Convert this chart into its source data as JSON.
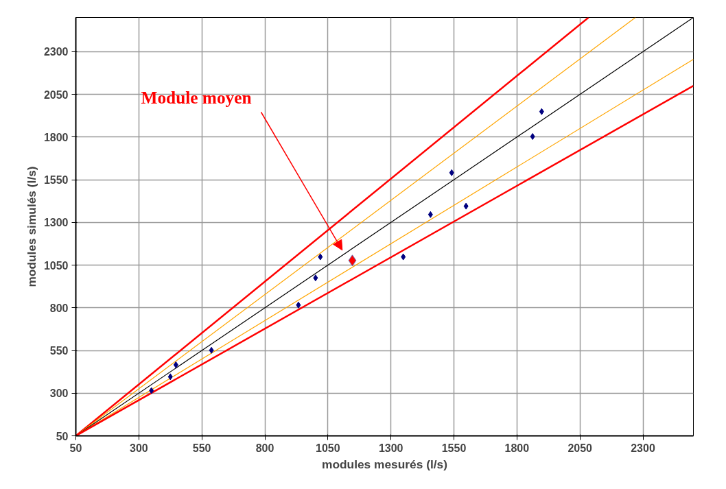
{
  "chart_data": {
    "type": "scatter",
    "xlabel": "modules mesurés (l/s)",
    "ylabel": "modules simulés (l/s)",
    "xlim": [
      50,
      2500
    ],
    "ylim": [
      50,
      2500
    ],
    "xticks": [
      50,
      300,
      550,
      800,
      1050,
      1300,
      1550,
      1800,
      2050,
      2300
    ],
    "yticks": [
      50,
      300,
      550,
      800,
      1050,
      1300,
      1550,
      1800,
      2050,
      2300
    ],
    "grid": true,
    "series": [
      {
        "type": "line",
        "color": "#ff0000",
        "x": [
          50,
          2084
        ],
        "values": [
          50,
          2500
        ]
      },
      {
        "type": "line",
        "color": "#ffa500",
        "x": [
          50,
          2270
        ],
        "values": [
          50,
          2500
        ]
      },
      {
        "type": "line",
        "color": "#000000",
        "x": [
          50,
          2500
        ],
        "values": [
          50,
          2500
        ]
      },
      {
        "type": "line",
        "color": "#ffa500",
        "x": [
          50,
          2500
        ],
        "values": [
          50,
          2255
        ]
      },
      {
        "type": "line",
        "color": "#ff0000",
        "x": [
          50,
          2500
        ],
        "values": [
          50,
          2100
        ]
      },
      {
        "marker": "diamond",
        "color": "#000080",
        "x": [
          350,
          425,
          447,
          588,
          933,
          1001,
          1020,
          1349,
          1457,
          1541,
          1598,
          1862,
          1898
        ],
        "values": [
          315,
          396,
          466,
          551,
          816,
          975,
          1098,
          1098,
          1346,
          1591,
          1395,
          1803,
          1949
        ]
      },
      {
        "marker": "diamond",
        "color": "#ff0000",
        "x": [
          1147
        ],
        "values": [
          1077
        ]
      }
    ],
    "annotations": [
      "Module moyen"
    ]
  }
}
